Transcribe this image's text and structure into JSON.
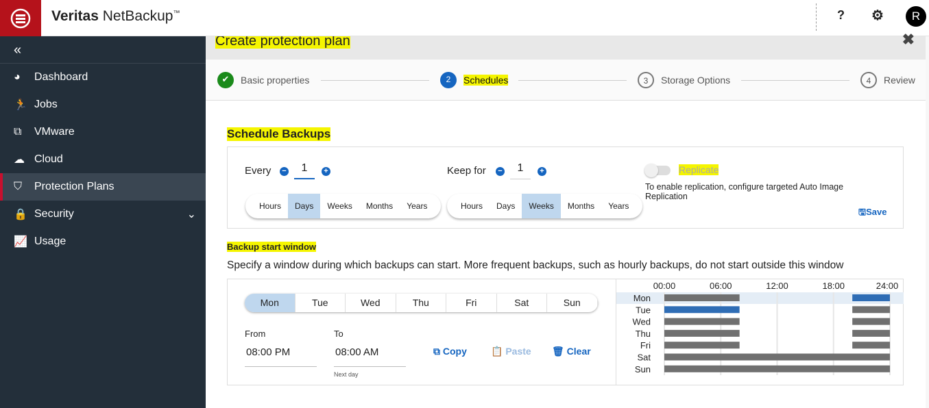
{
  "app": {
    "brand_bold": "Veritas",
    "brand_rest": " NetBackup",
    "tm": "™",
    "help": "?",
    "avatar": "R"
  },
  "sidebar": {
    "collapse": "«",
    "items": [
      {
        "label": "Dashboard",
        "icon": "dashboard-icon",
        "glyph": "◕"
      },
      {
        "label": "Jobs",
        "icon": "jobs-runner-icon",
        "glyph": "🏃"
      },
      {
        "label": "VMware",
        "icon": "vmware-icon",
        "glyph": "⧉"
      },
      {
        "label": "Cloud",
        "icon": "cloud-icon",
        "glyph": "☁"
      },
      {
        "label": "Protection Plans",
        "icon": "shield-icon",
        "glyph": "⛉",
        "active": true
      },
      {
        "label": "Security",
        "icon": "lock-icon",
        "glyph": "🔒",
        "chevron": "⌄"
      },
      {
        "label": "Usage",
        "icon": "chart-line-icon",
        "glyph": "📈"
      }
    ]
  },
  "dialog": {
    "title": "Create protection plan",
    "close": "✖",
    "steps": [
      {
        "label": "Basic properties",
        "state": "done",
        "mark": "✔"
      },
      {
        "label": "Schedules",
        "num": "2",
        "state": "active"
      },
      {
        "label": "Storage Options",
        "num": "3"
      },
      {
        "label": "Review",
        "num": "4"
      }
    ]
  },
  "schedule": {
    "title": "Schedule Backups",
    "every_label": "Every",
    "every_value": "1",
    "keep_label": "Keep for",
    "keep_value": "1",
    "units": [
      "Hours",
      "Days",
      "Weeks",
      "Months",
      "Years"
    ],
    "every_selected": "Days",
    "keep_selected": "Weeks",
    "replicate_label": "Replicate",
    "replicate_enabled": false,
    "replicate_note": "To enable replication, configure targeted Auto Image Replication",
    "save": "Save"
  },
  "window": {
    "title": "Backup start window",
    "description": "Specify a window during which backups can start. More frequent backups, such as hourly backups, do not start outside this window",
    "days": [
      "Mon",
      "Tue",
      "Wed",
      "Thu",
      "Fri",
      "Sat",
      "Sun"
    ],
    "selected_day": "Mon",
    "from_label": "From",
    "from_value": "08:00 PM",
    "to_label": "To",
    "to_value": "08:00 AM",
    "to_note": "Next day",
    "copy": "Copy",
    "paste": "Paste",
    "clear": "Clear"
  },
  "chart_data": {
    "type": "gantt",
    "x_ticks": [
      "00:00",
      "06:00",
      "12:00",
      "18:00",
      "24:00"
    ],
    "xlim": [
      0,
      24
    ],
    "grid": true,
    "rows": [
      {
        "day": "Mon",
        "windows": [
          [
            0,
            8
          ],
          [
            20,
            24
          ]
        ],
        "highlight": [
          20,
          24
        ]
      },
      {
        "day": "Tue",
        "windows": [
          [
            0,
            8
          ],
          [
            20,
            24
          ]
        ],
        "highlight": [
          0,
          8
        ]
      },
      {
        "day": "Wed",
        "windows": [
          [
            0,
            8
          ],
          [
            20,
            24
          ]
        ]
      },
      {
        "day": "Thu",
        "windows": [
          [
            0,
            8
          ],
          [
            20,
            24
          ]
        ]
      },
      {
        "day": "Fri",
        "windows": [
          [
            0,
            8
          ],
          [
            20,
            24
          ]
        ]
      },
      {
        "day": "Sat",
        "windows": [
          [
            0,
            24
          ]
        ]
      },
      {
        "day": "Sun",
        "windows": [
          [
            0,
            24
          ]
        ]
      }
    ],
    "colors": {
      "window": "#707070",
      "selected": "#2f6db5",
      "row_highlight": "#e4edf6"
    }
  }
}
